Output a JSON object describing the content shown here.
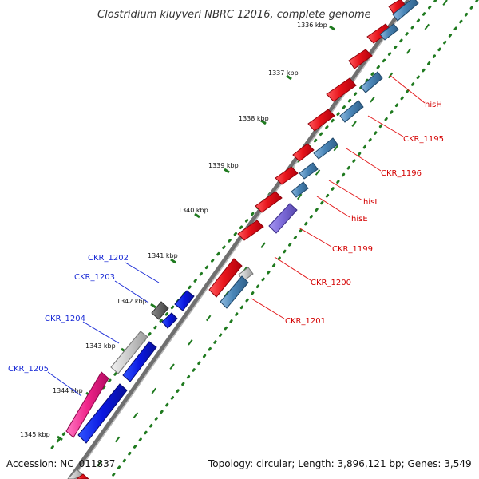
{
  "header": {
    "title": "Clostridium kluyveri NBRC 12016, complete genome"
  },
  "footer": {
    "accession": "Accession: NC_011837",
    "topology": "Topology: circular; Length: 3,896,121 bp; Genes: 3,549"
  },
  "scale_labels": [
    "1336 kbp",
    "1337 kbp",
    "1338 kbp",
    "1339 kbp",
    "1340 kbp",
    "1341 kbp",
    "1342 kbp",
    "1343 kbp",
    "1344 kbp",
    "1345 kbp"
  ],
  "gene_labels": {
    "forward": [
      "hisH",
      "CKR_1195",
      "CKR_1196",
      "hisI",
      "hisE",
      "CKR_1199",
      "CKR_1200",
      "CKR_1201"
    ],
    "reverse": [
      "CKR_1202",
      "CKR_1203",
      "CKR_1204",
      "CKR_1205"
    ]
  },
  "colors": {
    "forward_gene": "#e8141b",
    "forward_feature": "#4a86b8",
    "reverse_gene": "#0a17e0",
    "reverse_feature": "#c8c8c8",
    "highlight_gene": "#f0248a",
    "purple_feature": "#7a68d6",
    "dark_feature": "#555555",
    "tick_color": "#1f7a1f",
    "red_label": "#d40000",
    "blue_label": "#1a2bd6"
  }
}
